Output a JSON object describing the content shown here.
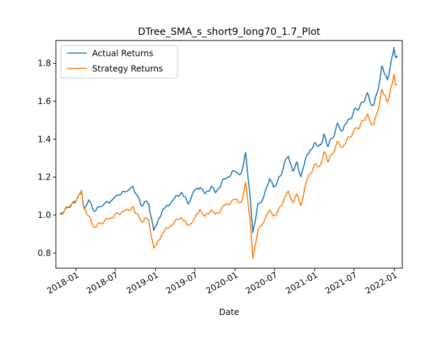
{
  "chart_data": {
    "type": "line",
    "title": "DTree_SMA_s_short9_long70_1.7_Plot",
    "xlabel": "Date",
    "ylabel": "",
    "xlim": [
      "2017-10-01",
      "2022-02-07"
    ],
    "ylim": [
      0.72,
      1.92
    ],
    "x_ticks": [
      "2018-01",
      "2018-07",
      "2019-01",
      "2019-07",
      "2020-01",
      "2020-07",
      "2021-01",
      "2021-07",
      "2022-01"
    ],
    "y_ticks": [
      "0.8",
      "1.0",
      "1.2",
      "1.4",
      "1.6",
      "1.8"
    ],
    "legend_position": "top-left",
    "grid": false,
    "series": [
      {
        "name": "Actual Returns",
        "color": "#1f77b4",
        "points": [
          [
            "2017-10-20",
            1.0
          ],
          [
            "2017-11-15",
            1.03
          ],
          [
            "2017-12-15",
            1.06
          ],
          [
            "2018-01-10",
            1.09
          ],
          [
            "2018-01-26",
            1.12
          ],
          [
            "2018-02-08",
            1.03
          ],
          [
            "2018-03-01",
            1.08
          ],
          [
            "2018-03-23",
            1.02
          ],
          [
            "2018-04-15",
            1.04
          ],
          [
            "2018-05-15",
            1.06
          ],
          [
            "2018-06-15",
            1.08
          ],
          [
            "2018-07-15",
            1.11
          ],
          [
            "2018-08-15",
            1.12
          ],
          [
            "2018-09-20",
            1.15
          ],
          [
            "2018-10-10",
            1.1
          ],
          [
            "2018-10-29",
            1.05
          ],
          [
            "2018-11-15",
            1.07
          ],
          [
            "2018-12-01",
            1.06
          ],
          [
            "2018-12-24",
            0.92
          ],
          [
            "2019-01-15",
            0.98
          ],
          [
            "2019-02-15",
            1.04
          ],
          [
            "2019-03-15",
            1.07
          ],
          [
            "2019-04-30",
            1.12
          ],
          [
            "2019-05-31",
            1.06
          ],
          [
            "2019-06-30",
            1.13
          ],
          [
            "2019-07-25",
            1.15
          ],
          [
            "2019-08-15",
            1.11
          ],
          [
            "2019-09-15",
            1.15
          ],
          [
            "2019-10-03",
            1.12
          ],
          [
            "2019-11-15",
            1.19
          ],
          [
            "2019-12-31",
            1.23
          ],
          [
            "2020-01-31",
            1.22
          ],
          [
            "2020-02-19",
            1.32
          ],
          [
            "2020-03-10",
            1.1
          ],
          [
            "2020-03-23",
            0.9
          ],
          [
            "2020-04-15",
            1.05
          ],
          [
            "2020-05-15",
            1.1
          ],
          [
            "2020-06-08",
            1.2
          ],
          [
            "2020-06-26",
            1.14
          ],
          [
            "2020-07-31",
            1.22
          ],
          [
            "2020-09-02",
            1.32
          ],
          [
            "2020-09-23",
            1.22
          ],
          [
            "2020-10-12",
            1.28
          ],
          [
            "2020-10-30",
            1.2
          ],
          [
            "2020-11-30",
            1.33
          ],
          [
            "2020-12-31",
            1.37
          ],
          [
            "2021-01-29",
            1.36
          ],
          [
            "2021-02-12",
            1.42
          ],
          [
            "2021-03-04",
            1.36
          ],
          [
            "2021-04-15",
            1.47
          ],
          [
            "2021-05-12",
            1.45
          ],
          [
            "2021-06-15",
            1.52
          ],
          [
            "2021-07-15",
            1.56
          ],
          [
            "2021-08-31",
            1.63
          ],
          [
            "2021-09-30",
            1.57
          ],
          [
            "2021-11-05",
            1.77
          ],
          [
            "2021-11-30",
            1.72
          ],
          [
            "2021-12-15",
            1.79
          ],
          [
            "2021-12-31",
            1.87
          ],
          [
            "2022-01-05",
            1.85
          ],
          [
            "2022-01-10",
            1.82
          ],
          [
            "2022-01-14",
            1.84
          ]
        ]
      },
      {
        "name": "Strategy Returns",
        "color": "#ff7f0e",
        "points": [
          [
            "2017-10-20",
            1.0
          ],
          [
            "2017-11-15",
            1.03
          ],
          [
            "2017-12-15",
            1.06
          ],
          [
            "2018-01-10",
            1.09
          ],
          [
            "2018-01-26",
            1.12
          ],
          [
            "2018-02-08",
            1.03
          ],
          [
            "2018-03-01",
            1.0
          ],
          [
            "2018-03-23",
            0.93
          ],
          [
            "2018-04-15",
            0.95
          ],
          [
            "2018-05-15",
            0.97
          ],
          [
            "2018-06-15",
            0.99
          ],
          [
            "2018-07-15",
            1.01
          ],
          [
            "2018-08-15",
            1.02
          ],
          [
            "2018-09-20",
            1.04
          ],
          [
            "2018-10-10",
            1.0
          ],
          [
            "2018-10-29",
            0.96
          ],
          [
            "2018-11-15",
            0.98
          ],
          [
            "2018-12-01",
            0.97
          ],
          [
            "2018-12-24",
            0.82
          ],
          [
            "2019-01-15",
            0.87
          ],
          [
            "2019-02-15",
            0.92
          ],
          [
            "2019-03-15",
            0.95
          ],
          [
            "2019-04-30",
            0.99
          ],
          [
            "2019-05-31",
            0.94
          ],
          [
            "2019-06-30",
            0.98
          ],
          [
            "2019-07-25",
            1.03
          ],
          [
            "2019-08-15",
            0.99
          ],
          [
            "2019-09-15",
            1.03
          ],
          [
            "2019-10-03",
            1.0
          ],
          [
            "2019-11-15",
            1.05
          ],
          [
            "2019-12-31",
            1.08
          ],
          [
            "2020-01-31",
            1.07
          ],
          [
            "2020-02-19",
            1.17
          ],
          [
            "2020-03-10",
            0.98
          ],
          [
            "2020-03-23",
            0.77
          ],
          [
            "2020-04-15",
            0.92
          ],
          [
            "2020-05-15",
            0.97
          ],
          [
            "2020-06-08",
            1.03
          ],
          [
            "2020-06-26",
            0.99
          ],
          [
            "2020-07-31",
            1.05
          ],
          [
            "2020-09-02",
            1.13
          ],
          [
            "2020-09-23",
            1.06
          ],
          [
            "2020-10-12",
            1.11
          ],
          [
            "2020-10-30",
            1.05
          ],
          [
            "2020-11-30",
            1.2
          ],
          [
            "2020-12-31",
            1.26
          ],
          [
            "2021-01-29",
            1.26
          ],
          [
            "2021-02-12",
            1.33
          ],
          [
            "2021-03-04",
            1.28
          ],
          [
            "2021-04-15",
            1.38
          ],
          [
            "2021-05-12",
            1.36
          ],
          [
            "2021-06-15",
            1.42
          ],
          [
            "2021-07-15",
            1.46
          ],
          [
            "2021-08-31",
            1.52
          ],
          [
            "2021-09-30",
            1.47
          ],
          [
            "2021-11-05",
            1.65
          ],
          [
            "2021-11-30",
            1.6
          ],
          [
            "2021-12-15",
            1.66
          ],
          [
            "2021-12-31",
            1.73
          ],
          [
            "2022-01-05",
            1.71
          ],
          [
            "2022-01-10",
            1.68
          ],
          [
            "2022-01-14",
            1.69
          ]
        ]
      }
    ]
  }
}
